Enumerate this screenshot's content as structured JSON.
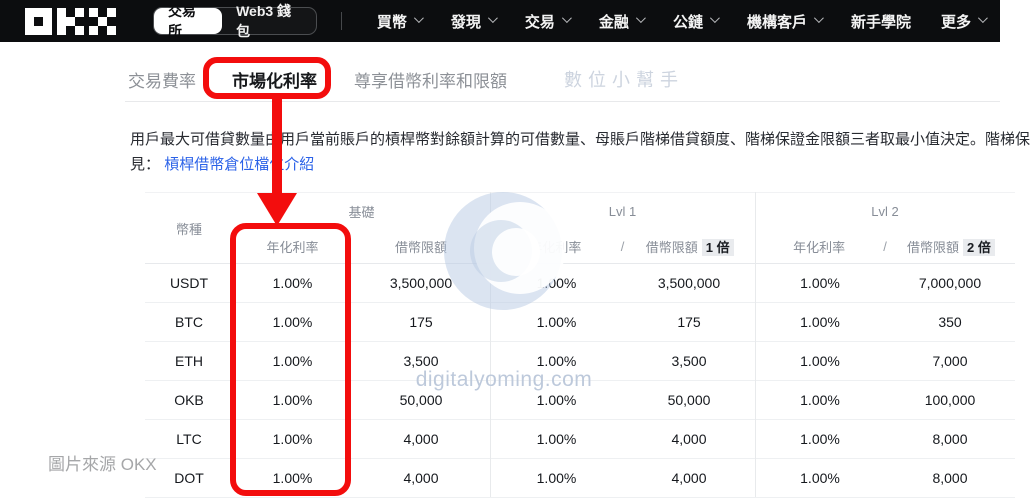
{
  "nav": {
    "logo_alt": "OKX",
    "toggle": {
      "exchange": "交易所",
      "wallet": "Web3 錢包"
    },
    "items": [
      {
        "label": "買幣"
      },
      {
        "label": "發現"
      },
      {
        "label": "交易"
      },
      {
        "label": "金融"
      },
      {
        "label": "公鏈"
      },
      {
        "label": "機構客戶"
      },
      {
        "label": "新手學院"
      },
      {
        "label": "更多"
      }
    ]
  },
  "tabs": {
    "items": [
      {
        "label": "交易費率"
      },
      {
        "label": "市場化利率",
        "active": true
      },
      {
        "label": "尊享借幣利率和限額"
      },
      {
        "label": "數位小幫手"
      }
    ]
  },
  "description": {
    "line1": "用戶最大可借貸數量由用戶當前賬戶的槓桿幣對餘額計算的可借數量、母賬戶階梯借貸額度、階梯保證金限額三者取最小值決定。階梯保",
    "line2_prefix": "見：",
    "link": "槓桿借幣倉位檔位介紹"
  },
  "table": {
    "coin_header": "幣種",
    "slash": "/",
    "groups": [
      {
        "name": "基礎",
        "rate_label": "年化利率",
        "limit_label": "借幣限額",
        "badge": ""
      },
      {
        "name": "Lvl 1",
        "rate_label": "年化利率",
        "limit_label": "借幣限額",
        "badge": "1 倍"
      },
      {
        "name": "Lvl 2",
        "rate_label": "年化利率",
        "limit_label": "借幣限額",
        "badge": "2 倍"
      }
    ],
    "rows": [
      {
        "coin": "USDT",
        "base_rate": "1.00%",
        "base_limit": "3,500,000",
        "lvl1_rate": "1.00%",
        "lvl1_limit": "3,500,000",
        "lvl2_rate": "1.00%",
        "lvl2_limit": "7,000,000"
      },
      {
        "coin": "BTC",
        "base_rate": "1.00%",
        "base_limit": "175",
        "lvl1_rate": "1.00%",
        "lvl1_limit": "175",
        "lvl2_rate": "1.00%",
        "lvl2_limit": "350"
      },
      {
        "coin": "ETH",
        "base_rate": "1.00%",
        "base_limit": "3,500",
        "lvl1_rate": "1.00%",
        "lvl1_limit": "3,500",
        "lvl2_rate": "1.00%",
        "lvl2_limit": "7,000"
      },
      {
        "coin": "OKB",
        "base_rate": "1.00%",
        "base_limit": "50,000",
        "lvl1_rate": "1.00%",
        "lvl1_limit": "50,000",
        "lvl2_rate": "1.00%",
        "lvl2_limit": "100,000"
      },
      {
        "coin": "LTC",
        "base_rate": "1.00%",
        "base_limit": "4,000",
        "lvl1_rate": "1.00%",
        "lvl1_limit": "4,000",
        "lvl2_rate": "1.00%",
        "lvl2_limit": "8,000"
      },
      {
        "coin": "DOT",
        "base_rate": "1.00%",
        "base_limit": "4,000",
        "lvl1_rate": "1.00%",
        "lvl1_limit": "4,000",
        "lvl2_rate": "1.00%",
        "lvl2_limit": "8,000"
      }
    ]
  },
  "watermark": {
    "text": "digitalyoming.com"
  },
  "caption": "圖片來源 OKX",
  "icons": {
    "logo": "okx-logo",
    "chevron": "chevron-down-icon",
    "annotation_arrow": "red-arrow-down",
    "annotation_boxes": "red-highlight-rectangles"
  },
  "colors": {
    "nav_bg": "#0c0d0f",
    "annotation_red": "#f30d0d",
    "link_blue": "#2b62e8",
    "watermark_blue": "#bdc9db",
    "badge_bg": "#e9ebee"
  }
}
